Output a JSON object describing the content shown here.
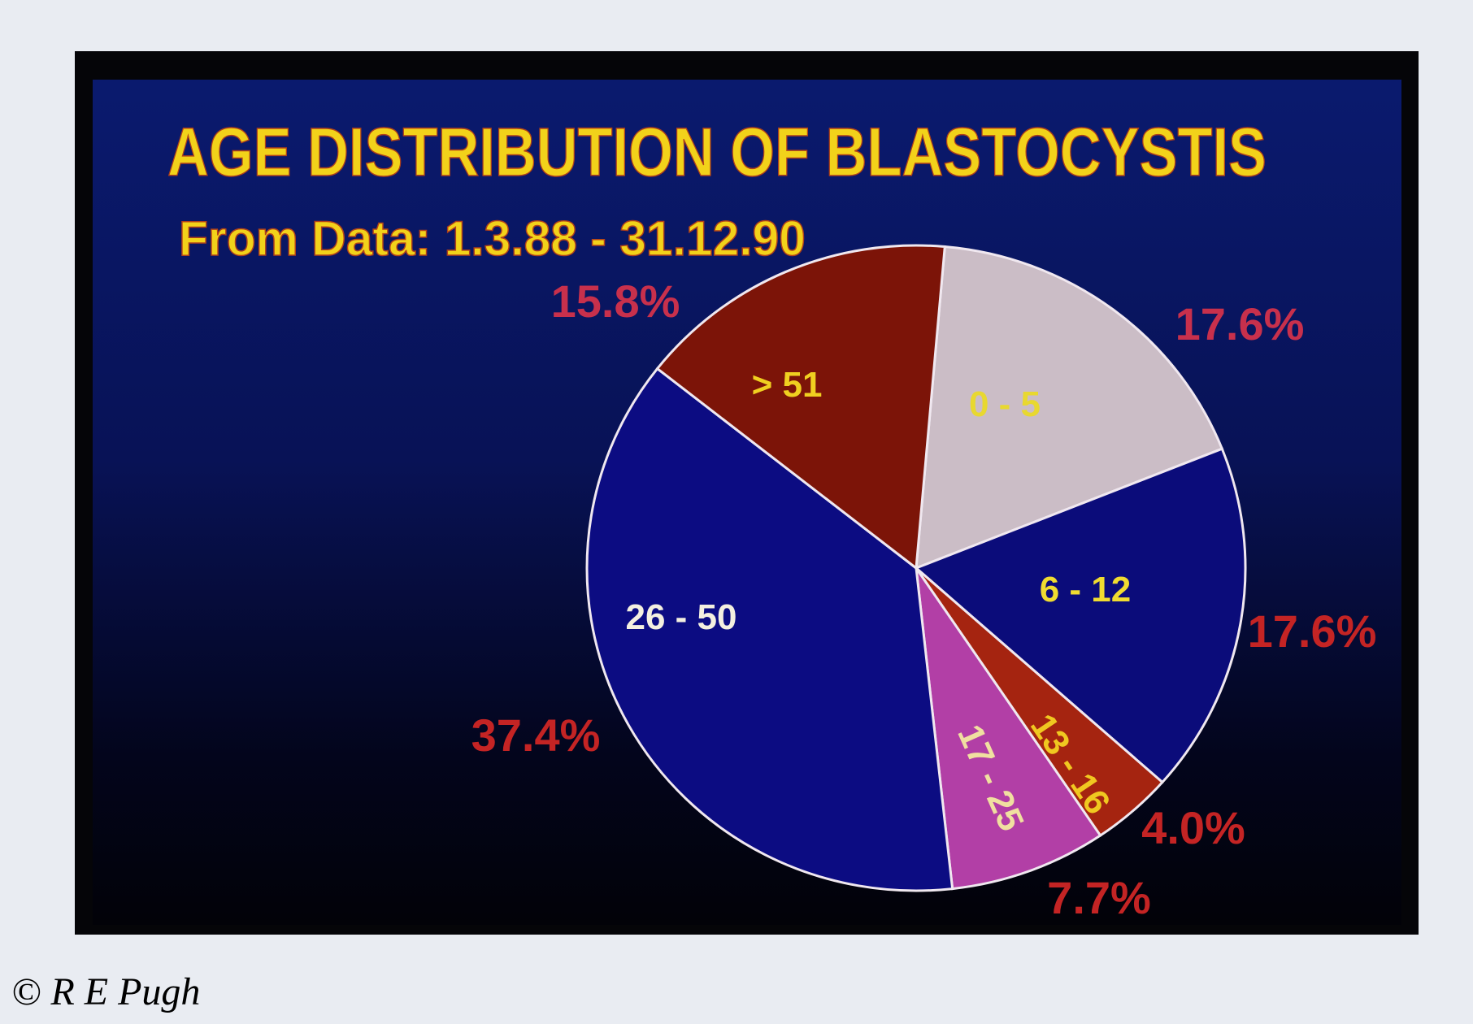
{
  "chart_data": {
    "type": "pie",
    "title": "AGE DISTRIBUTION OF BLASTOCYSTIS",
    "subtitle": "From Data: 1.3.88 - 31.12.90",
    "slices": [
      {
        "label": "0 - 5",
        "value": 17.6,
        "value_label": "17.6%",
        "color": "#cbbdc6",
        "label_color": "#e8d830"
      },
      {
        "label": "6 - 12",
        "value": 17.6,
        "value_label": "17.6%",
        "color": "#0b0c7a",
        "label_color": "#f0dc30"
      },
      {
        "label": "13 - 16",
        "value": 4.0,
        "value_label": "4.0%",
        "color": "#a52410",
        "label_color": "#f0c820"
      },
      {
        "label": "17 - 25",
        "value": 7.7,
        "value_label": "7.7%",
        "color": "#b23fa6",
        "label_color": "#f0e0a0"
      },
      {
        "label": "26 - 50",
        "value": 37.4,
        "value_label": "37.4%",
        "color": "#0c0c82",
        "label_color": "#f4f0e0"
      },
      {
        "label": "> 51",
        "value": 15.8,
        "value_label": "15.8%",
        "color": "#7c1408",
        "label_color": "#f0d020"
      }
    ],
    "percent_label_color": "#c42424",
    "start_angle_deg": 5,
    "direction": "clockwise"
  },
  "copyright": "© R E Pugh"
}
